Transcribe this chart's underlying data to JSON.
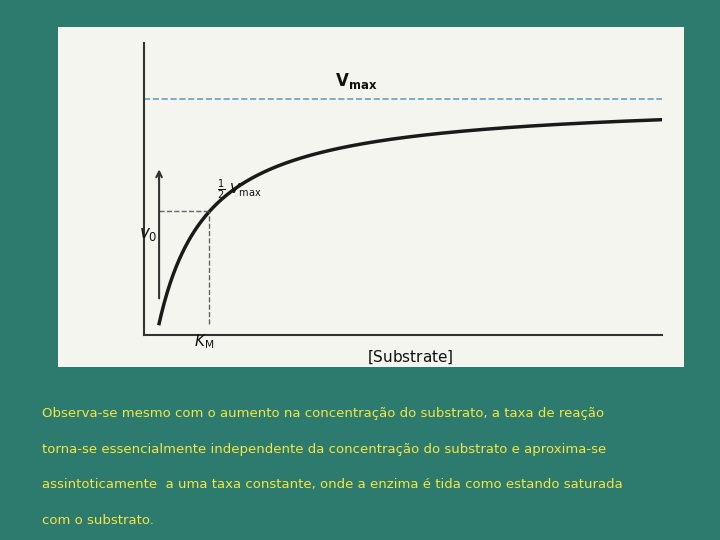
{
  "background_color": "#2d7a6e",
  "panel_color": "#f5f5f0",
  "curve_color": "#1a1a1a",
  "dashed_color": "#4a90c4",
  "dashed_line_color": "#555555",
  "vmax": 1.0,
  "km": 1.0,
  "x_max": 10.0,
  "text_color_yellow": "#f5e642",
  "paragraph_text": [
    "Observa-se mesmo com o aumento na concentração do substrato, a taxa de reação",
    "torna-se essencialmente independente da concentração do substrato e aproxima-se",
    "assintoticamente  a uma taxa constante, onde a enzima é tida como estando saturada",
    "com o substrato."
  ]
}
